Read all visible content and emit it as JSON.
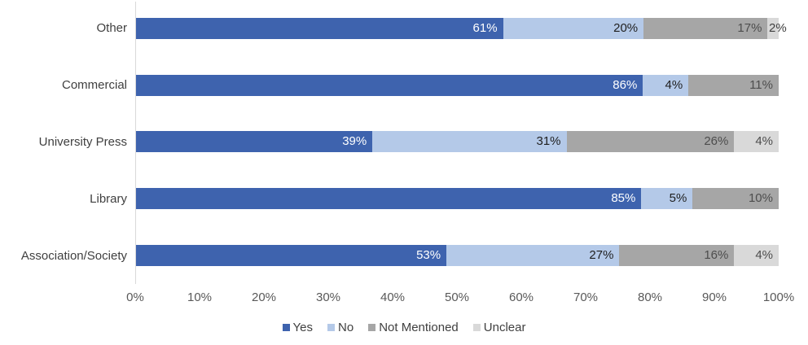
{
  "chart_data": {
    "type": "bar",
    "stacked": true,
    "orientation": "horizontal",
    "title": "",
    "xlabel": "",
    "ylabel": "",
    "categories": [
      "Other",
      "Commercial",
      "University Press",
      "Library",
      "Association/Society"
    ],
    "series": [
      {
        "name": "Yes",
        "color": "#3E63AE",
        "label_color": "#FFFFFF",
        "values": [
          61,
          86,
          39,
          85,
          53
        ]
      },
      {
        "name": "No",
        "color": "#B4C9E8",
        "label_color": "#1F1F1F",
        "values": [
          20,
          4,
          31,
          5,
          27
        ]
      },
      {
        "name": "Not Mentioned",
        "color": "#A6A6A6",
        "label_color": "#4D4D4D",
        "values": [
          17,
          11,
          26,
          10,
          16
        ]
      },
      {
        "name": "Unclear",
        "color": "#D9D9D9",
        "label_color": "#4D4D4D",
        "values": [
          2,
          0,
          4,
          0,
          4
        ]
      }
    ],
    "data_label_suffix": "%",
    "x_ticks": [
      "0%",
      "10%",
      "20%",
      "30%",
      "40%",
      "50%",
      "60%",
      "70%",
      "80%",
      "90%",
      "100%"
    ],
    "xlim": [
      0,
      100
    ],
    "grid": false,
    "legend_position": "bottom",
    "outside_label_threshold": 3,
    "outside_label_color": "#404040",
    "axis_line_color": "#D9D9D9",
    "tick_label_color": "#595959",
    "category_label_color": "#3F3F3F",
    "legend_label_color": "#404040",
    "background": "#FFFFFF"
  }
}
